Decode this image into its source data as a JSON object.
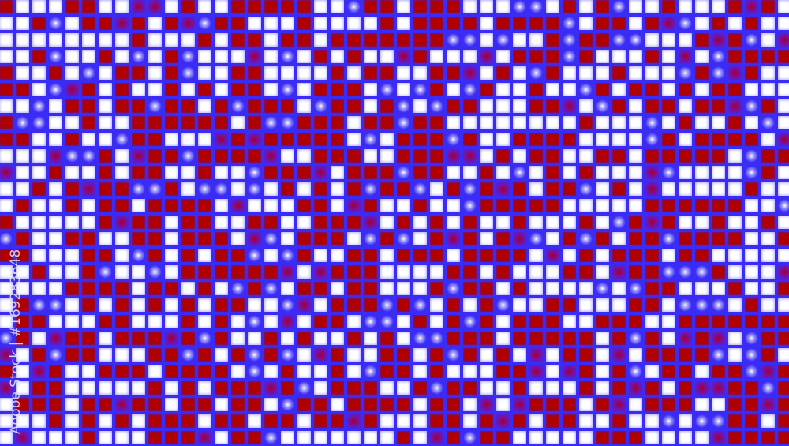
{
  "image": {
    "description_colors": {
      "red": "#b00000",
      "white": "#ffffff",
      "blue": "#3a2bf5"
    },
    "pattern": "mosaic-grid",
    "columns": 49,
    "rows": 27,
    "mix": {
      "red": 0.45,
      "white": 0.4,
      "blue": 0.1,
      "dark": 0.05
    }
  },
  "watermark": {
    "text": "Adobe Stock | #169283648"
  }
}
